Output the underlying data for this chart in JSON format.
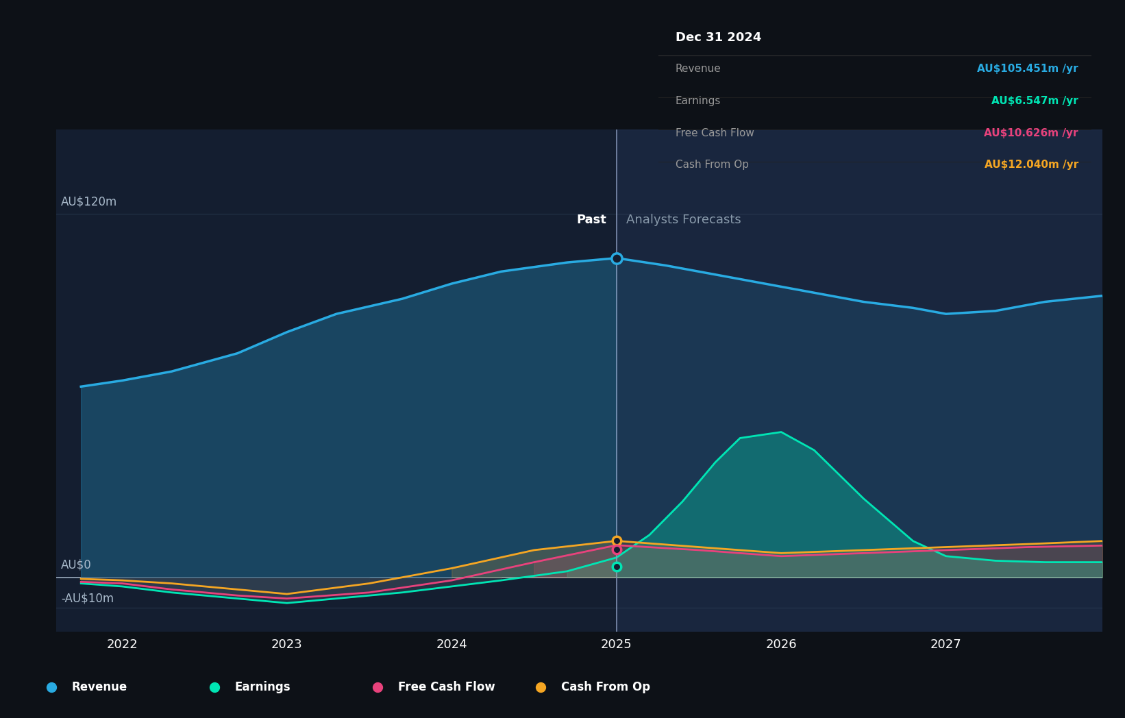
{
  "bg_color": "#131b2a",
  "plot_bg_color": "#141e30",
  "outer_bg": "#0d1117",
  "revenue_color": "#29abe2",
  "earnings_color": "#00e5b4",
  "fcf_color": "#e8427c",
  "cashop_color": "#f5a623",
  "divider_x": 2025.0,
  "past_label": "Past",
  "forecast_label": "Analysts Forecasts",
  "tooltip_title": "Dec 31 2024",
  "tooltip_items": [
    {
      "label": "Revenue",
      "value": "AU$105.451m /yr",
      "color": "#29abe2"
    },
    {
      "label": "Earnings",
      "value": "AU$6.547m /yr",
      "color": "#00e5b4"
    },
    {
      "label": "Free Cash Flow",
      "value": "AU$10.626m /yr",
      "color": "#e8427c"
    },
    {
      "label": "Cash From Op",
      "value": "AU$12.040m /yr",
      "color": "#f5a623"
    }
  ],
  "ylim": [
    -18,
    148
  ],
  "yticks": [
    -10,
    0,
    120
  ],
  "ytick_labels": [
    "-AU$10m",
    "AU$0",
    "AU$120m"
  ],
  "xlim": [
    2021.6,
    2027.95
  ],
  "xticks": [
    2022,
    2023,
    2024,
    2025,
    2026,
    2027
  ],
  "legend_items": [
    {
      "label": "Revenue",
      "color": "#29abe2"
    },
    {
      "label": "Earnings",
      "color": "#00e5b4"
    },
    {
      "label": "Free Cash Flow",
      "color": "#e8427c"
    },
    {
      "label": "Cash From Op",
      "color": "#f5a623"
    }
  ],
  "revenue_x": [
    2021.75,
    2022.0,
    2022.3,
    2022.7,
    2023.0,
    2023.3,
    2023.7,
    2024.0,
    2024.3,
    2024.7,
    2025.0,
    2025.3,
    2025.6,
    2026.0,
    2026.3,
    2026.5,
    2026.8,
    2027.0,
    2027.3,
    2027.6,
    2027.95
  ],
  "revenue_y": [
    63,
    65,
    68,
    74,
    81,
    87,
    92,
    97,
    101,
    104,
    105.451,
    103,
    100,
    96,
    93,
    91,
    89,
    87,
    88,
    91,
    93
  ],
  "earnings_x": [
    2021.75,
    2022.0,
    2022.3,
    2022.7,
    2023.0,
    2023.3,
    2023.7,
    2024.0,
    2024.3,
    2024.7,
    2025.0,
    2025.2,
    2025.4,
    2025.6,
    2025.75,
    2026.0,
    2026.2,
    2026.5,
    2026.8,
    2027.0,
    2027.3,
    2027.6,
    2027.95
  ],
  "earnings_y": [
    -2,
    -3,
    -5,
    -7,
    -8.5,
    -7,
    -5,
    -3,
    -1,
    2,
    6.547,
    14,
    25,
    38,
    46,
    48,
    42,
    26,
    12,
    7,
    5.5,
    5,
    5
  ],
  "fcf_x": [
    2021.75,
    2022.0,
    2022.3,
    2022.7,
    2023.0,
    2023.5,
    2024.0,
    2024.5,
    2025.0,
    2025.5,
    2026.0,
    2026.5,
    2027.0,
    2027.5,
    2027.95
  ],
  "fcf_y": [
    -1.5,
    -2,
    -4,
    -6,
    -7,
    -5,
    -1,
    5,
    10.626,
    9,
    7,
    8,
    9,
    10,
    10.5
  ],
  "cashop_x": [
    2021.75,
    2022.0,
    2022.3,
    2022.7,
    2023.0,
    2023.5,
    2024.0,
    2024.5,
    2025.0,
    2025.5,
    2026.0,
    2026.5,
    2027.0,
    2027.5,
    2027.95
  ],
  "cashop_y": [
    -0.5,
    -1,
    -2,
    -4,
    -5.5,
    -2,
    3,
    9,
    12.04,
    10,
    8,
    9,
    10,
    11,
    12
  ],
  "marker_x": 2025.0,
  "revenue_at_divider": 105.451,
  "earnings_at_divider": 6.547,
  "fcf_at_divider": 10.626,
  "cashop_at_divider": 12.04
}
